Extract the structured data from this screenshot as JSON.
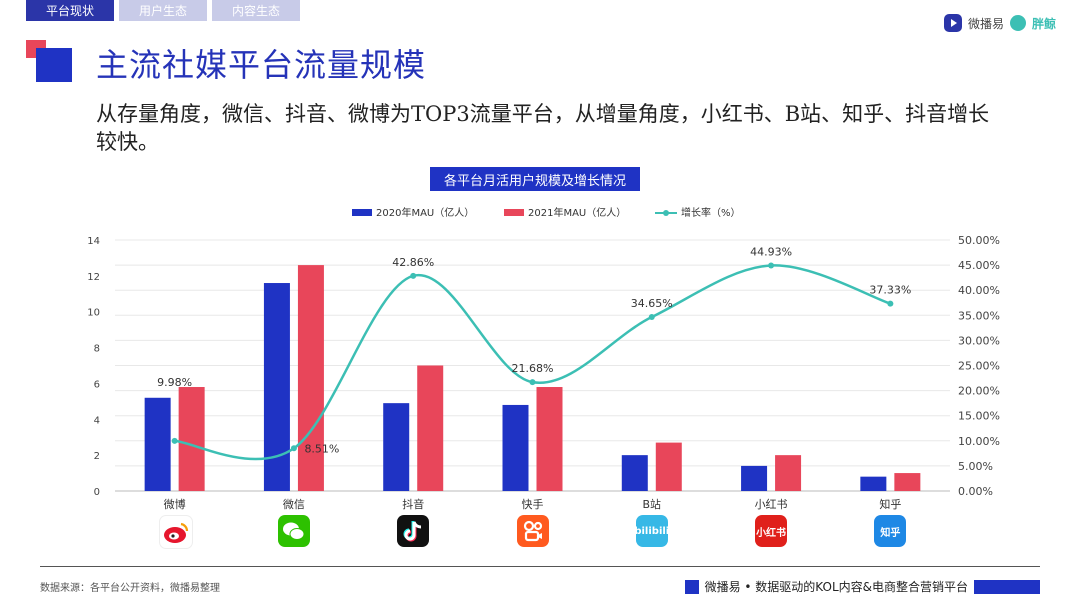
{
  "tabs": [
    "平台现状",
    "用户生态",
    "内容生态"
  ],
  "brand": {
    "name1": "微播易",
    "name2": "胖鲸"
  },
  "title": "主流社媒平台流量规模",
  "subtitle": "从存量角度，微信、抖音、微博为TOP3流量平台，从增量角度，小红书、B站、知乎、抖音增长较快。",
  "chart_title": "各平台月活用户规模及增长情况",
  "colors": {
    "mau2020": "#1f33c4",
    "mau2021": "#e8465a",
    "growth": "#3cbfb4"
  },
  "chart_data": {
    "type": "bar",
    "categories": [
      "微博",
      "微信",
      "抖音",
      "快手",
      "B站",
      "小红书",
      "知乎"
    ],
    "series": [
      {
        "name": "2020年MAU（亿人）",
        "values": [
          5.2,
          11.6,
          4.9,
          4.8,
          2.0,
          1.4,
          0.8
        ]
      },
      {
        "name": "2021年MAU（亿人）",
        "values": [
          5.8,
          12.6,
          7.0,
          5.8,
          2.7,
          2.0,
          1.0
        ]
      },
      {
        "name": "增长率（%）",
        "type": "line",
        "axis": "right",
        "values": [
          9.98,
          8.51,
          42.86,
          21.68,
          34.65,
          44.93,
          37.33
        ]
      }
    ],
    "growth_labels": [
      "9.98%",
      "8.51%",
      "42.86%",
      "21.68%",
      "34.65%",
      "44.93%",
      "37.33%"
    ],
    "y_left": {
      "min": 0,
      "max": 14,
      "ticks": [
        "0",
        "2",
        "4",
        "6",
        "8",
        "10",
        "12",
        "14"
      ]
    },
    "y_right": {
      "min": 0,
      "max": 50,
      "ticks": [
        "0.00%",
        "5.00%",
        "10.00%",
        "15.00%",
        "20.00%",
        "25.00%",
        "30.00%",
        "35.00%",
        "40.00%",
        "45.00%",
        "50.00%"
      ]
    },
    "grid": true,
    "legend": "top"
  },
  "apps": [
    {
      "name": "weibo-icon",
      "text": "",
      "color": "#ffffff"
    },
    {
      "name": "wechat-icon",
      "text": "",
      "color": "#2dc100"
    },
    {
      "name": "douyin-icon",
      "text": "",
      "color": "#111111"
    },
    {
      "name": "kuaishou-icon",
      "text": "",
      "color": "#ff5a1f"
    },
    {
      "name": "bilibili-icon",
      "text": "bilibili",
      "color": "#36b8e6"
    },
    {
      "name": "xiaohongshu-icon",
      "text": "小红书",
      "color": "#e0201b"
    },
    {
      "name": "zhihu-icon",
      "text": "知乎",
      "color": "#1e88e5"
    }
  ],
  "footer": {
    "source": "数据来源：各平台公开资料，微播易整理",
    "tagline": "微播易 • 数据驱动的KOL内容&电商整合营销平台"
  }
}
